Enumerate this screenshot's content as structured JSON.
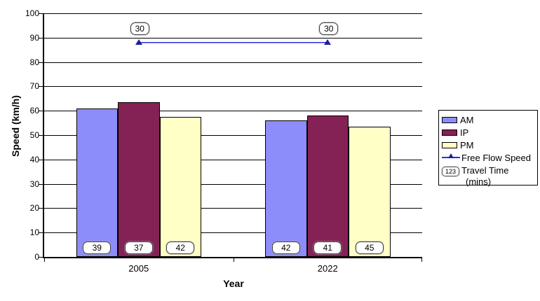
{
  "chart_data": {
    "type": "bar",
    "title": "",
    "xlabel": "Year",
    "ylabel": "Speed (km/h)",
    "ylim": [
      0,
      100
    ],
    "ytick_step": 10,
    "grid": "horizontal",
    "legend_position": "right",
    "categories": [
      "2005",
      "2022"
    ],
    "series": [
      {
        "name": "AM",
        "values": [
          61,
          56
        ],
        "color": "#8c8cfa",
        "travel_time_mins": [
          39,
          42
        ]
      },
      {
        "name": "IP",
        "values": [
          63.5,
          58
        ],
        "color": "#842155",
        "travel_time_mins": [
          37,
          41
        ]
      },
      {
        "name": "PM",
        "values": [
          57.5,
          53.5
        ],
        "color": "#ffffc6",
        "travel_time_mins": [
          42,
          45
        ]
      }
    ],
    "line_series": {
      "name": "Free Flow Speed",
      "values": [
        88,
        88
      ],
      "color": "#2d2de0",
      "marker_color": "#1f1f9e",
      "marker": "triangle-up",
      "travel_time_mins": [
        30,
        30
      ]
    }
  },
  "legend": {
    "am_label": "AM",
    "ip_label": "IP",
    "pm_label": "PM",
    "free_flow_label": "Free Flow Speed",
    "travel_time_icon_text": "123",
    "travel_time_label_line1": "Travel Time",
    "travel_time_label_line2": "(mins)"
  },
  "axes": {
    "y_title": "Speed (km/h)",
    "x_title": "Year"
  }
}
